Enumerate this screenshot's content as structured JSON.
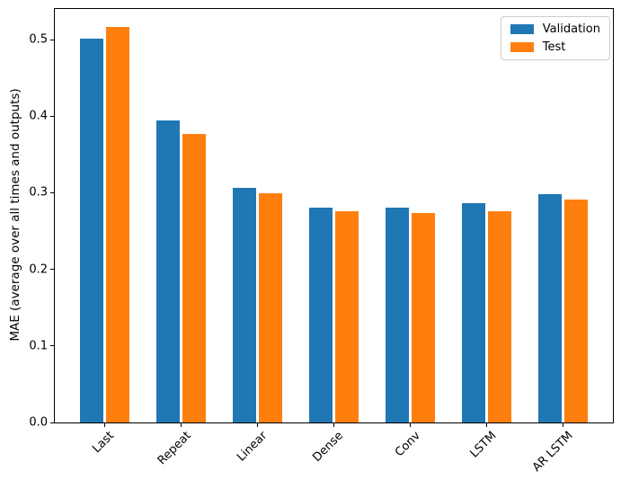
{
  "chart_data": {
    "type": "bar",
    "title": "",
    "xlabel": "",
    "ylabel": "MAE (average over all times and outputs)",
    "categories": [
      "Last",
      "Repeat",
      "Linear",
      "Dense",
      "Conv",
      "LSTM",
      "AR LSTM"
    ],
    "series": [
      {
        "name": "Validation",
        "color": "#1f77b4",
        "values": [
          0.501,
          0.395,
          0.306,
          0.281,
          0.28,
          0.286,
          0.298
        ]
      },
      {
        "name": "Test",
        "color": "#ff7f0e",
        "values": [
          0.516,
          0.377,
          0.299,
          0.276,
          0.274,
          0.276,
          0.291
        ]
      }
    ],
    "y_ticks": [
      "0.0",
      "0.1",
      "0.2",
      "0.3",
      "0.4",
      "0.5"
    ],
    "ylim": [
      0,
      0.54
    ],
    "grid": false,
    "legend_position": "upper right",
    "bar_width_units": 0.3,
    "bar_offset_units": 0.17,
    "x_tick_rotation_deg": 45
  }
}
